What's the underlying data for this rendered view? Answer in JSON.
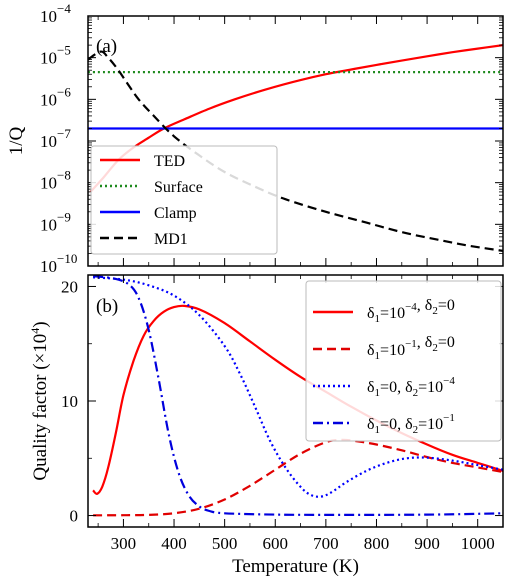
{
  "chart_data": [
    {
      "type": "line",
      "panel_label": "(a)",
      "xlabel": "",
      "ylabel": "1/Q",
      "xlim": [
        230,
        1050
      ],
      "y_scale": "log",
      "ylim": [
        1e-10,
        0.0001
      ],
      "y_ticks": [
        {
          "value": 1e-10,
          "mant": "10",
          "exp": "−10"
        },
        {
          "value": 1e-09,
          "mant": "10",
          "exp": "−9"
        },
        {
          "value": 1e-08,
          "mant": "10",
          "exp": "−8"
        },
        {
          "value": 1e-07,
          "mant": "10",
          "exp": "−7"
        },
        {
          "value": 1e-06,
          "mant": "10",
          "exp": "−6"
        },
        {
          "value": 1e-05,
          "mant": "10",
          "exp": "−5"
        },
        {
          "value": 0.0001,
          "mant": "10",
          "exp": "−4"
        }
      ],
      "legend_position": "bottom-left",
      "series": [
        {
          "name": "TED",
          "color": "#ff0000",
          "dash": "solid",
          "points": [
            [
              235,
              6e-09
            ],
            [
              260,
              1.3e-08
            ],
            [
              290,
              3.5e-08
            ],
            [
              320,
              7e-08
            ],
            [
              350,
              1.2e-07
            ],
            [
              380,
              2e-07
            ],
            [
              420,
              3.3e-07
            ],
            [
              470,
              6e-07
            ],
            [
              520,
              1e-06
            ],
            [
              580,
              1.7e-06
            ],
            [
              650,
              2.9e-06
            ],
            [
              700,
              4e-06
            ],
            [
              750,
              5.2e-06
            ],
            [
              800,
              6.7e-06
            ],
            [
              850,
              8.5e-06
            ],
            [
              900,
              1.08e-05
            ],
            [
              950,
              1.35e-05
            ],
            [
              1000,
              1.65e-05
            ],
            [
              1050,
              2e-05
            ]
          ]
        },
        {
          "name": "Surface",
          "color": "#1e8a1e",
          "dash": "dotted",
          "points": [
            [
              230,
              4.5e-06
            ],
            [
              1050,
              4.5e-06
            ]
          ]
        },
        {
          "name": "Clamp",
          "color": "#0000ff",
          "dash": "solid",
          "points": [
            [
              230,
              2e-07
            ],
            [
              1050,
              2e-07
            ]
          ]
        },
        {
          "name": "MD1",
          "color": "#000000",
          "dash": "dashed",
          "points": [
            [
              230,
              9e-06
            ],
            [
              255,
              1.4e-05
            ],
            [
              270,
              1e-05
            ],
            [
              290,
              5e-06
            ],
            [
              310,
              2.2e-06
            ],
            [
              330,
              1e-06
            ],
            [
              360,
              4e-07
            ],
            [
              400,
              1.3e-07
            ],
            [
              450,
              4.5e-08
            ],
            [
              500,
              1.8e-08
            ],
            [
              560,
              8e-09
            ],
            [
              620,
              4e-09
            ],
            [
              700,
              2e-09
            ],
            [
              780,
              1.1e-09
            ],
            [
              850,
              6.5e-10
            ],
            [
              920,
              4.3e-10
            ],
            [
              980,
              3.1e-10
            ],
            [
              1050,
              2.3e-10
            ]
          ]
        }
      ]
    },
    {
      "type": "line",
      "panel_label": "(b)",
      "xlabel": "Temperature (K)",
      "ylabel": "Quality factor (×10",
      "ylabel_sup": "4",
      "ylabel_end": ")",
      "xlim": [
        230,
        1050
      ],
      "ylim": [
        -1,
        21
      ],
      "x_ticks": [
        300,
        400,
        500,
        600,
        700,
        800,
        900,
        1000
      ],
      "y_ticks": [
        0,
        10,
        20
      ],
      "legend_position": "top-right",
      "series": [
        {
          "name": "δ1=10^-4, δ2=0",
          "color": "#ff0000",
          "dash": "solid",
          "label": {
            "a": "=10",
            "ae": "−4",
            "b": "=0",
            "be": ""
          },
          "points": [
            [
              240,
              2.2
            ],
            [
              248,
              1.9
            ],
            [
              258,
              2.5
            ],
            [
              270,
              4.2
            ],
            [
              285,
              7.2
            ],
            [
              300,
              10.5
            ],
            [
              320,
              13.5
            ],
            [
              340,
              15.7
            ],
            [
              360,
              17.0
            ],
            [
              380,
              17.8
            ],
            [
              400,
              18.2
            ],
            [
              420,
              18.3
            ],
            [
              450,
              18.0
            ],
            [
              500,
              16.8
            ],
            [
              550,
              15.2
            ],
            [
              600,
              13.6
            ],
            [
              650,
              12.1
            ],
            [
              700,
              10.8
            ],
            [
              750,
              9.5
            ],
            [
              800,
              8.3
            ],
            [
              850,
              7.2
            ],
            [
              900,
              6.2
            ],
            [
              950,
              5.3
            ],
            [
              1000,
              4.6
            ],
            [
              1050,
              3.9
            ]
          ]
        },
        {
          "name": "δ1=10^-1, δ2=0",
          "color": "#e00000",
          "dash": "dashed",
          "label": {
            "a": "=10",
            "ae": "−1",
            "b": "=0",
            "be": ""
          },
          "points": [
            [
              240,
              0.02
            ],
            [
              300,
              0.03
            ],
            [
              350,
              0.06
            ],
            [
              400,
              0.2
            ],
            [
              450,
              0.6
            ],
            [
              500,
              1.4
            ],
            [
              550,
              2.6
            ],
            [
              600,
              4.0
            ],
            [
              650,
              5.4
            ],
            [
              700,
              6.4
            ],
            [
              730,
              6.6
            ],
            [
              760,
              6.5
            ],
            [
              800,
              6.2
            ],
            [
              850,
              5.7
            ],
            [
              900,
              5.1
            ],
            [
              950,
              4.6
            ],
            [
              1000,
              4.2
            ],
            [
              1050,
              3.8
            ]
          ]
        },
        {
          "name": "δ1=0, δ2=10^-4",
          "color": "#0000ff",
          "dash": "dotted",
          "label": {
            "a": "=0",
            "ae": "",
            "b": "=10",
            "be": "−4"
          },
          "points": [
            [
              240,
              20.8
            ],
            [
              300,
              20.6
            ],
            [
              350,
              20.1
            ],
            [
              400,
              19.2
            ],
            [
              450,
              17.5
            ],
            [
              500,
              14.8
            ],
            [
              530,
              12.4
            ],
            [
              560,
              9.5
            ],
            [
              590,
              6.5
            ],
            [
              620,
              4.2
            ],
            [
              650,
              2.5
            ],
            [
              670,
              1.8
            ],
            [
              690,
              1.65
            ],
            [
              710,
              2.0
            ],
            [
              740,
              2.9
            ],
            [
              780,
              3.9
            ],
            [
              820,
              4.6
            ],
            [
              860,
              5.0
            ],
            [
              900,
              5.05
            ],
            [
              950,
              4.8
            ],
            [
              1000,
              4.4
            ],
            [
              1050,
              4.0
            ]
          ]
        },
        {
          "name": "δ1=0, δ2=10^-1",
          "color": "#0000dd",
          "dash": "dashdot",
          "label": {
            "a": "=0",
            "ae": "",
            "b": "=10",
            "be": "−1"
          },
          "points": [
            [
              240,
              20.9
            ],
            [
              280,
              20.7
            ],
            [
              310,
              20.2
            ],
            [
              330,
              19.0
            ],
            [
              350,
              16.2
            ],
            [
              370,
              11.8
            ],
            [
              390,
              7.0
            ],
            [
              410,
              3.6
            ],
            [
              430,
              1.7
            ],
            [
              450,
              0.8
            ],
            [
              470,
              0.4
            ],
            [
              500,
              0.2
            ],
            [
              600,
              0.08
            ],
            [
              700,
              0.06
            ],
            [
              800,
              0.06
            ],
            [
              900,
              0.08
            ],
            [
              1000,
              0.15
            ],
            [
              1050,
              0.2
            ]
          ]
        }
      ]
    }
  ]
}
